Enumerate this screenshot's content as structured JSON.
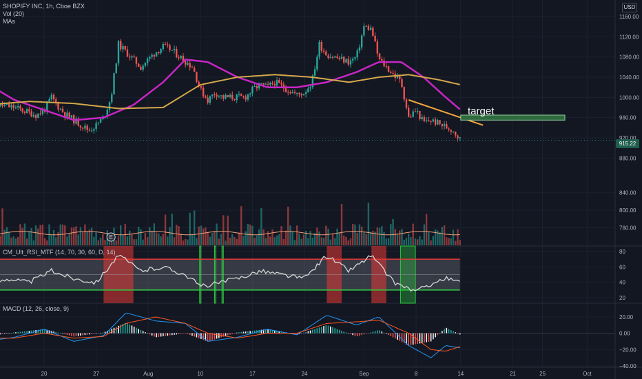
{
  "legend": {
    "symbol": "SHOPIFY INC, 1h, Cboe BZX",
    "vol": "Vol (20)",
    "mas": "MAs",
    "rsi": "CM_Ult_RSI_MTF (14, 70, 30, 60, D, 14)",
    "macd": "MACD (12, 26, close, 9)",
    "currency": "USD",
    "last_price": "915.22",
    "annotation": "target",
    "earnings_marker": "E"
  },
  "colors": {
    "background": "#131722",
    "up": "#26a69a",
    "down": "#ef5350",
    "ma_fast": "#c726c4",
    "ma_slow": "#d4a84a",
    "trendline": "#f4a73b",
    "target_box": "#2f6b3e",
    "rsi_line": "#d6d6d6",
    "rsi_upper": "#e53935",
    "rsi_lower": "#2ecc40",
    "macd_line": "#2196f3",
    "signal_line": "#ff5722"
  },
  "chart_data": [
    {
      "type": "candlestick",
      "title": "SHOPIFY INC, 1h, Cboe BZX",
      "ylim": [
        860,
        1160
      ],
      "y_ticks": [
        "1160.00",
        "1120.00",
        "1080.00",
        "1040.00",
        "1000.00",
        "960.00",
        "920.00",
        "880.00"
      ],
      "x_tick_labels": [
        "20",
        "27",
        "Aug",
        "10",
        "17",
        "24",
        "Sep",
        "8",
        "14",
        "21",
        "25",
        "Oct"
      ],
      "x_dates": [
        "2021-07-20",
        "2021-07-27",
        "2021-08-03",
        "2021-08-10",
        "2021-08-17",
        "2021-08-24",
        "2021-09-01",
        "2021-09-08",
        "2021-09-14",
        "2021-09-21",
        "2021-09-25",
        "2021-10-01"
      ],
      "last_price": 915.22,
      "price_path": [
        {
          "x": "2021-07-12",
          "y": 995
        },
        {
          "x": "2021-07-14",
          "y": 985
        },
        {
          "x": "2021-07-16",
          "y": 980
        },
        {
          "x": "2021-07-19",
          "y": 965
        },
        {
          "x": "2021-07-20",
          "y": 975
        },
        {
          "x": "2021-07-21",
          "y": 1000
        },
        {
          "x": "2021-07-22",
          "y": 980
        },
        {
          "x": "2021-07-23",
          "y": 965
        },
        {
          "x": "2021-07-26",
          "y": 935
        },
        {
          "x": "2021-07-27",
          "y": 945
        },
        {
          "x": "2021-07-28",
          "y": 960
        },
        {
          "x": "2021-07-29",
          "y": 1000
        },
        {
          "x": "2021-07-30",
          "y": 1105
        },
        {
          "x": "2021-08-02",
          "y": 1060
        },
        {
          "x": "2021-08-03",
          "y": 1075
        },
        {
          "x": "2021-08-04",
          "y": 1090
        },
        {
          "x": "2021-08-05",
          "y": 1100
        },
        {
          "x": "2021-08-06",
          "y": 1095
        },
        {
          "x": "2021-08-09",
          "y": 1060
        },
        {
          "x": "2021-08-10",
          "y": 1015
        },
        {
          "x": "2021-08-11",
          "y": 995
        },
        {
          "x": "2021-08-12",
          "y": 1010
        },
        {
          "x": "2021-08-13",
          "y": 1000
        },
        {
          "x": "2021-08-16",
          "y": 1000
        },
        {
          "x": "2021-08-17",
          "y": 1015
        },
        {
          "x": "2021-08-18",
          "y": 1025
        },
        {
          "x": "2021-08-19",
          "y": 1020
        },
        {
          "x": "2021-08-20",
          "y": 1030
        },
        {
          "x": "2021-08-23",
          "y": 1005
        },
        {
          "x": "2021-08-24",
          "y": 1010
        },
        {
          "x": "2021-08-25",
          "y": 1030
        },
        {
          "x": "2021-08-26",
          "y": 1105
        },
        {
          "x": "2021-08-27",
          "y": 1085
        },
        {
          "x": "2021-08-30",
          "y": 1070
        },
        {
          "x": "2021-08-31",
          "y": 1080
        },
        {
          "x": "2021-09-01",
          "y": 1140
        },
        {
          "x": "2021-09-02",
          "y": 1135
        },
        {
          "x": "2021-09-03",
          "y": 1075
        },
        {
          "x": "2021-09-06",
          "y": 1030
        },
        {
          "x": "2021-09-07",
          "y": 960
        },
        {
          "x": "2021-09-08",
          "y": 975
        },
        {
          "x": "2021-09-09",
          "y": 950
        },
        {
          "x": "2021-09-10",
          "y": 955
        },
        {
          "x": "2021-09-13",
          "y": 935
        },
        {
          "x": "2021-09-14",
          "y": 915
        }
      ],
      "ma_fast_path": [
        {
          "x": "2021-07-12",
          "y": 1030
        },
        {
          "x": "2021-07-16",
          "y": 995
        },
        {
          "x": "2021-07-20",
          "y": 975
        },
        {
          "x": "2021-07-24",
          "y": 955
        },
        {
          "x": "2021-07-28",
          "y": 960
        },
        {
          "x": "2021-08-01",
          "y": 985
        },
        {
          "x": "2021-08-05",
          "y": 1030
        },
        {
          "x": "2021-08-08",
          "y": 1075
        },
        {
          "x": "2021-08-11",
          "y": 1070
        },
        {
          "x": "2021-08-15",
          "y": 1040
        },
        {
          "x": "2021-08-19",
          "y": 1020
        },
        {
          "x": "2021-08-23",
          "y": 1020
        },
        {
          "x": "2021-08-27",
          "y": 1030
        },
        {
          "x": "2021-08-31",
          "y": 1050
        },
        {
          "x": "2021-09-03",
          "y": 1070
        },
        {
          "x": "2021-09-06",
          "y": 1070
        },
        {
          "x": "2021-09-09",
          "y": 1040
        },
        {
          "x": "2021-09-12",
          "y": 1000
        },
        {
          "x": "2021-09-14",
          "y": 975
        }
      ],
      "ma_slow_path": [
        {
          "x": "2021-07-12",
          "y": 985
        },
        {
          "x": "2021-07-18",
          "y": 992
        },
        {
          "x": "2021-07-24",
          "y": 988
        },
        {
          "x": "2021-07-30",
          "y": 978
        },
        {
          "x": "2021-08-05",
          "y": 980
        },
        {
          "x": "2021-08-10",
          "y": 1025
        },
        {
          "x": "2021-08-15",
          "y": 1040
        },
        {
          "x": "2021-08-20",
          "y": 1045
        },
        {
          "x": "2021-08-25",
          "y": 1040
        },
        {
          "x": "2021-08-30",
          "y": 1030
        },
        {
          "x": "2021-09-03",
          "y": 1040
        },
        {
          "x": "2021-09-07",
          "y": 1045
        },
        {
          "x": "2021-09-11",
          "y": 1035
        },
        {
          "x": "2021-09-14",
          "y": 1025
        }
      ],
      "trendline": [
        {
          "x": "2021-09-07",
          "y": 995
        },
        {
          "x": "2021-09-17",
          "y": 945
        }
      ],
      "target_zone": {
        "x_start": "2021-09-14",
        "x_end": "2021-09-28",
        "y_low": 955,
        "y_high": 965
      }
    },
    {
      "type": "bar",
      "title": "Vol (20)",
      "ylim": [
        720,
        860
      ],
      "y_ticks": [
        "840.00",
        "800.00",
        "760.00"
      ]
    },
    {
      "type": "line",
      "title": "CM_Ult_RSI_MTF (14, 70, 30, 60, D, 14)",
      "ylim": [
        20,
        80
      ],
      "y_ticks": [
        "80",
        "60",
        "40",
        "20"
      ],
      "upper_band": 70,
      "lower_band": 30,
      "mid_line": 50,
      "rsi_path": [
        {
          "x": "2021-07-12",
          "y": 35
        },
        {
          "x": "2021-07-15",
          "y": 45
        },
        {
          "x": "2021-07-18",
          "y": 40
        },
        {
          "x": "2021-07-21",
          "y": 55
        },
        {
          "x": "2021-07-24",
          "y": 45
        },
        {
          "x": "2021-07-27",
          "y": 40
        },
        {
          "x": "2021-07-30",
          "y": 75
        },
        {
          "x": "2021-08-02",
          "y": 55
        },
        {
          "x": "2021-08-05",
          "y": 60
        },
        {
          "x": "2021-08-08",
          "y": 50
        },
        {
          "x": "2021-08-10",
          "y": 35
        },
        {
          "x": "2021-08-12",
          "y": 38
        },
        {
          "x": "2021-08-15",
          "y": 45
        },
        {
          "x": "2021-08-18",
          "y": 55
        },
        {
          "x": "2021-08-21",
          "y": 50
        },
        {
          "x": "2021-08-24",
          "y": 45
        },
        {
          "x": "2021-08-27",
          "y": 75
        },
        {
          "x": "2021-08-30",
          "y": 55
        },
        {
          "x": "2021-09-02",
          "y": 75
        },
        {
          "x": "2021-09-05",
          "y": 40
        },
        {
          "x": "2021-09-08",
          "y": 28
        },
        {
          "x": "2021-09-10",
          "y": 38
        },
        {
          "x": "2021-09-12",
          "y": 45
        },
        {
          "x": "2021-09-14",
          "y": 40
        }
      ]
    },
    {
      "type": "line",
      "title": "MACD (12, 26, close, 9)",
      "ylim": [
        -40,
        30
      ],
      "y_ticks": [
        "20.00",
        "0.00",
        "−20.00",
        "−40.00"
      ],
      "macd_path": [
        {
          "x": "2021-07-12",
          "y": -10
        },
        {
          "x": "2021-07-16",
          "y": -5
        },
        {
          "x": "2021-07-20",
          "y": 5
        },
        {
          "x": "2021-07-24",
          "y": -10
        },
        {
          "x": "2021-07-28",
          "y": -3
        },
        {
          "x": "2021-07-31",
          "y": 25
        },
        {
          "x": "2021-08-04",
          "y": 15
        },
        {
          "x": "2021-08-08",
          "y": 12
        },
        {
          "x": "2021-08-11",
          "y": -10
        },
        {
          "x": "2021-08-15",
          "y": -5
        },
        {
          "x": "2021-08-19",
          "y": 5
        },
        {
          "x": "2021-08-23",
          "y": -2
        },
        {
          "x": "2021-08-27",
          "y": 22
        },
        {
          "x": "2021-08-31",
          "y": 10
        },
        {
          "x": "2021-09-03",
          "y": 20
        },
        {
          "x": "2021-09-07",
          "y": -15
        },
        {
          "x": "2021-09-10",
          "y": -30
        },
        {
          "x": "2021-09-12",
          "y": -15
        },
        {
          "x": "2021-09-14",
          "y": -18
        }
      ],
      "signal_path": [
        {
          "x": "2021-07-12",
          "y": -6
        },
        {
          "x": "2021-07-16",
          "y": -6
        },
        {
          "x": "2021-07-20",
          "y": 0
        },
        {
          "x": "2021-07-24",
          "y": -6
        },
        {
          "x": "2021-07-28",
          "y": -4
        },
        {
          "x": "2021-07-31",
          "y": 12
        },
        {
          "x": "2021-08-04",
          "y": 20
        },
        {
          "x": "2021-08-08",
          "y": 12
        },
        {
          "x": "2021-08-11",
          "y": 0
        },
        {
          "x": "2021-08-15",
          "y": -6
        },
        {
          "x": "2021-08-19",
          "y": 0
        },
        {
          "x": "2021-08-23",
          "y": 0
        },
        {
          "x": "2021-08-27",
          "y": 12
        },
        {
          "x": "2021-08-31",
          "y": 14
        },
        {
          "x": "2021-09-03",
          "y": 16
        },
        {
          "x": "2021-09-07",
          "y": 0
        },
        {
          "x": "2021-09-10",
          "y": -20
        },
        {
          "x": "2021-09-12",
          "y": -22
        },
        {
          "x": "2021-09-14",
          "y": -16
        }
      ]
    }
  ]
}
